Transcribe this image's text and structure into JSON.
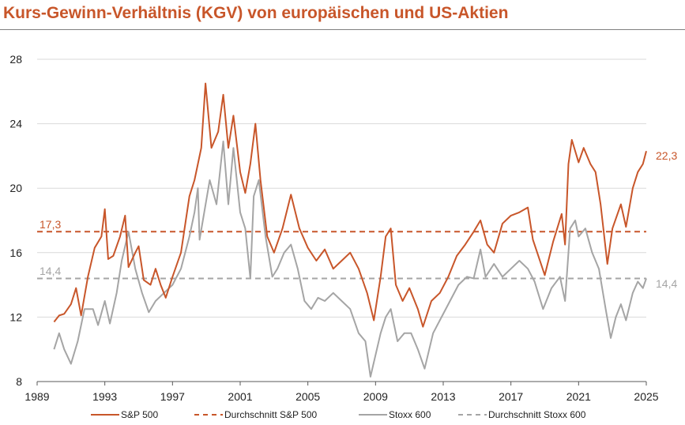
{
  "chart_data": {
    "type": "line",
    "title": "Kurs-Gewinn-Verhältnis (KGV) von europäischen und US-Aktien",
    "xlabel": "",
    "ylabel": "",
    "xlim": [
      1989,
      2025
    ],
    "ylim": [
      8,
      28
    ],
    "x_ticks": [
      "1989",
      "1993",
      "1997",
      "2001",
      "2005",
      "2009",
      "2013",
      "2017",
      "2021",
      "2025"
    ],
    "y_ticks": [
      "8",
      "12",
      "16",
      "20",
      "24",
      "28"
    ],
    "grid": "horizontal",
    "legend": "bottom",
    "colors": {
      "sp500": "#C8562A",
      "stoxx": "#A5A5A5"
    },
    "series": [
      {
        "name": "S&P 500",
        "style": "solid",
        "color": "#C8562A",
        "points": [
          [
            1990.0,
            11.7
          ],
          [
            1990.3,
            12.1
          ],
          [
            1990.6,
            12.2
          ],
          [
            1991.0,
            12.8
          ],
          [
            1991.3,
            13.8
          ],
          [
            1991.6,
            12.1
          ],
          [
            1992.0,
            14.5
          ],
          [
            1992.4,
            16.3
          ],
          [
            1992.8,
            17.0
          ],
          [
            1993.0,
            18.7
          ],
          [
            1993.2,
            15.6
          ],
          [
            1993.5,
            15.8
          ],
          [
            1993.9,
            17.0
          ],
          [
            1994.2,
            18.3
          ],
          [
            1994.4,
            15.1
          ],
          [
            1994.8,
            16.0
          ],
          [
            1995.0,
            16.4
          ],
          [
            1995.3,
            14.3
          ],
          [
            1995.7,
            14.0
          ],
          [
            1996.0,
            15.0
          ],
          [
            1996.3,
            14.0
          ],
          [
            1996.6,
            13.2
          ],
          [
            1997.0,
            14.5
          ],
          [
            1997.5,
            16.0
          ],
          [
            1998.0,
            19.5
          ],
          [
            1998.3,
            20.5
          ],
          [
            1998.7,
            22.5
          ],
          [
            1998.95,
            26.5
          ],
          [
            1999.3,
            22.5
          ],
          [
            1999.7,
            23.5
          ],
          [
            2000.0,
            25.8
          ],
          [
            2000.3,
            22.5
          ],
          [
            2000.6,
            24.5
          ],
          [
            2001.0,
            21.0
          ],
          [
            2001.3,
            19.7
          ],
          [
            2001.6,
            21.5
          ],
          [
            2001.9,
            24.0
          ],
          [
            2002.2,
            20.5
          ],
          [
            2002.6,
            17.0
          ],
          [
            2003.0,
            16.0
          ],
          [
            2003.5,
            17.5
          ],
          [
            2004.0,
            19.6
          ],
          [
            2004.5,
            17.5
          ],
          [
            2005.0,
            16.3
          ],
          [
            2005.5,
            15.5
          ],
          [
            2006.0,
            16.2
          ],
          [
            2006.5,
            15.0
          ],
          [
            2007.0,
            15.5
          ],
          [
            2007.5,
            16.0
          ],
          [
            2008.0,
            15.0
          ],
          [
            2008.5,
            13.5
          ],
          [
            2008.9,
            11.8
          ],
          [
            2009.3,
            14.5
          ],
          [
            2009.6,
            17.0
          ],
          [
            2009.9,
            17.5
          ],
          [
            2010.2,
            14.0
          ],
          [
            2010.6,
            13.0
          ],
          [
            2011.0,
            13.8
          ],
          [
            2011.5,
            12.5
          ],
          [
            2011.8,
            11.4
          ],
          [
            2012.3,
            13.0
          ],
          [
            2012.8,
            13.5
          ],
          [
            2013.3,
            14.5
          ],
          [
            2013.8,
            15.8
          ],
          [
            2014.3,
            16.5
          ],
          [
            2014.8,
            17.3
          ],
          [
            2015.2,
            18.0
          ],
          [
            2015.6,
            16.5
          ],
          [
            2016.0,
            16.0
          ],
          [
            2016.5,
            17.8
          ],
          [
            2017.0,
            18.3
          ],
          [
            2017.5,
            18.5
          ],
          [
            2018.0,
            18.8
          ],
          [
            2018.3,
            16.8
          ],
          [
            2019.0,
            14.6
          ],
          [
            2019.5,
            16.7
          ],
          [
            2020.0,
            18.4
          ],
          [
            2020.2,
            16.5
          ],
          [
            2020.4,
            21.5
          ],
          [
            2020.6,
            23.0
          ],
          [
            2021.0,
            21.6
          ],
          [
            2021.3,
            22.5
          ],
          [
            2021.7,
            21.5
          ],
          [
            2022.0,
            21.0
          ],
          [
            2022.3,
            19.0
          ],
          [
            2022.7,
            15.3
          ],
          [
            2023.0,
            17.5
          ],
          [
            2023.5,
            19.0
          ],
          [
            2023.8,
            17.6
          ],
          [
            2024.2,
            20.0
          ],
          [
            2024.5,
            21.0
          ],
          [
            2024.8,
            21.5
          ],
          [
            2025.0,
            22.3
          ]
        ]
      },
      {
        "name": "Durchschnitt S&P 500",
        "style": "dashed",
        "color": "#C8562A",
        "value": 17.3
      },
      {
        "name": "Stoxx 600",
        "style": "solid",
        "color": "#A5A5A5",
        "points": [
          [
            1990.0,
            10.0
          ],
          [
            1990.3,
            11.0
          ],
          [
            1990.6,
            10.0
          ],
          [
            1991.0,
            9.1
          ],
          [
            1991.4,
            10.5
          ],
          [
            1991.8,
            12.5
          ],
          [
            1992.3,
            12.5
          ],
          [
            1992.6,
            11.5
          ],
          [
            1993.0,
            13.0
          ],
          [
            1993.3,
            11.6
          ],
          [
            1993.7,
            13.5
          ],
          [
            1994.0,
            15.5
          ],
          [
            1994.4,
            17.3
          ],
          [
            1994.8,
            15.0
          ],
          [
            1995.2,
            13.5
          ],
          [
            1995.6,
            12.3
          ],
          [
            1996.0,
            13.0
          ],
          [
            1996.5,
            13.5
          ],
          [
            1997.0,
            14.0
          ],
          [
            1997.5,
            15.0
          ],
          [
            1998.0,
            17.0
          ],
          [
            1998.3,
            18.5
          ],
          [
            1998.5,
            20.0
          ],
          [
            1998.6,
            16.8
          ],
          [
            1999.2,
            20.5
          ],
          [
            1999.6,
            19.0
          ],
          [
            2000.0,
            22.9
          ],
          [
            2000.3,
            19.0
          ],
          [
            2000.6,
            22.5
          ],
          [
            2001.0,
            18.5
          ],
          [
            2001.3,
            17.5
          ],
          [
            2001.6,
            14.4
          ],
          [
            2001.8,
            19.5
          ],
          [
            2002.1,
            20.5
          ],
          [
            2002.5,
            17.0
          ],
          [
            2002.9,
            14.5
          ],
          [
            2003.2,
            15.0
          ],
          [
            2003.6,
            16.0
          ],
          [
            2004.0,
            16.5
          ],
          [
            2004.4,
            15.0
          ],
          [
            2004.8,
            13.0
          ],
          [
            2005.2,
            12.5
          ],
          [
            2005.6,
            13.2
          ],
          [
            2006.0,
            13.0
          ],
          [
            2006.5,
            13.5
          ],
          [
            2007.0,
            13.0
          ],
          [
            2007.5,
            12.5
          ],
          [
            2008.0,
            11.0
          ],
          [
            2008.4,
            10.5
          ],
          [
            2008.7,
            8.3
          ],
          [
            2009.3,
            11.0
          ],
          [
            2009.6,
            12.0
          ],
          [
            2009.9,
            12.5
          ],
          [
            2010.3,
            10.5
          ],
          [
            2010.7,
            11.0
          ],
          [
            2011.1,
            11.0
          ],
          [
            2011.5,
            10.0
          ],
          [
            2011.9,
            8.8
          ],
          [
            2012.4,
            11.0
          ],
          [
            2012.9,
            12.0
          ],
          [
            2013.4,
            13.0
          ],
          [
            2013.9,
            14.0
          ],
          [
            2014.4,
            14.5
          ],
          [
            2014.8,
            14.4
          ],
          [
            2015.2,
            16.2
          ],
          [
            2015.5,
            14.5
          ],
          [
            2016.0,
            15.3
          ],
          [
            2016.5,
            14.5
          ],
          [
            2017.0,
            15.0
          ],
          [
            2017.5,
            15.5
          ],
          [
            2018.0,
            15.0
          ],
          [
            2018.4,
            14.2
          ],
          [
            2018.9,
            12.5
          ],
          [
            2019.4,
            13.8
          ],
          [
            2019.9,
            14.5
          ],
          [
            2020.2,
            13.0
          ],
          [
            2020.5,
            17.5
          ],
          [
            2020.8,
            18.0
          ],
          [
            2021.0,
            17.0
          ],
          [
            2021.4,
            17.5
          ],
          [
            2021.8,
            16.0
          ],
          [
            2022.2,
            15.0
          ],
          [
            2022.6,
            12.5
          ],
          [
            2022.9,
            10.7
          ],
          [
            2023.2,
            12.0
          ],
          [
            2023.5,
            12.8
          ],
          [
            2023.8,
            11.8
          ],
          [
            2024.2,
            13.5
          ],
          [
            2024.5,
            14.2
          ],
          [
            2024.8,
            13.8
          ],
          [
            2025.0,
            14.4
          ]
        ]
      },
      {
        "name": "Durchschnitt Stoxx 600",
        "style": "dashed",
        "color": "#A5A5A5",
        "value": 14.4
      }
    ],
    "annotations": {
      "sp_avg_label": "17,3",
      "stoxx_avg_label": "14,4",
      "sp_last_label": "22,3",
      "stoxx_last_label": "14,4"
    }
  }
}
